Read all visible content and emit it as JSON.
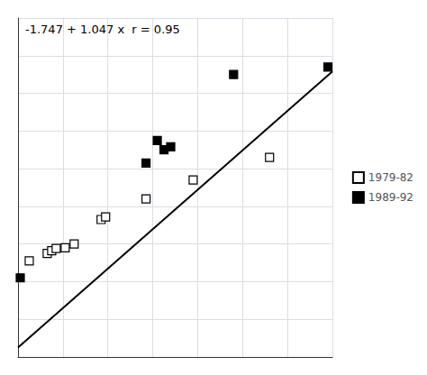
{
  "chart_data": {
    "type": "scatter",
    "annotation": "-1.747 + 1.047 x  r = 0.95",
    "xlim": [
      0,
      7
    ],
    "xticks": [
      0,
      1,
      2,
      3,
      4,
      5,
      6,
      7
    ],
    "ylim": [
      -2,
      7
    ],
    "yticks": [
      -2,
      -1,
      0,
      1,
      2,
      3,
      4,
      5,
      6,
      7
    ],
    "grid": true,
    "tick_labels": false,
    "legend": "right",
    "series": [
      {
        "type": "line",
        "color": "#000000",
        "line_style": "solid",
        "x": [
          0,
          7
        ],
        "values": [
          -1.747,
          5.582
        ]
      },
      {
        "name": "1979-82",
        "type": "scatter",
        "color": "#ffffff",
        "marker": "square",
        "x": [
          0.25,
          0.65,
          0.75,
          0.85,
          1.05,
          1.25,
          1.85,
          1.95,
          2.85,
          3.9,
          5.6
        ],
        "values": [
          0.55,
          0.75,
          0.82,
          0.88,
          0.9,
          1.0,
          1.65,
          1.72,
          2.2,
          2.7,
          3.3
        ]
      },
      {
        "name": "1989-92",
        "type": "scatter",
        "color": "#000000",
        "marker": "square",
        "x": [
          0.05,
          2.85,
          3.1,
          3.25,
          3.4,
          4.8,
          6.9
        ],
        "values": [
          0.1,
          3.15,
          3.75,
          3.5,
          3.58,
          5.5,
          5.7
        ]
      }
    ]
  }
}
